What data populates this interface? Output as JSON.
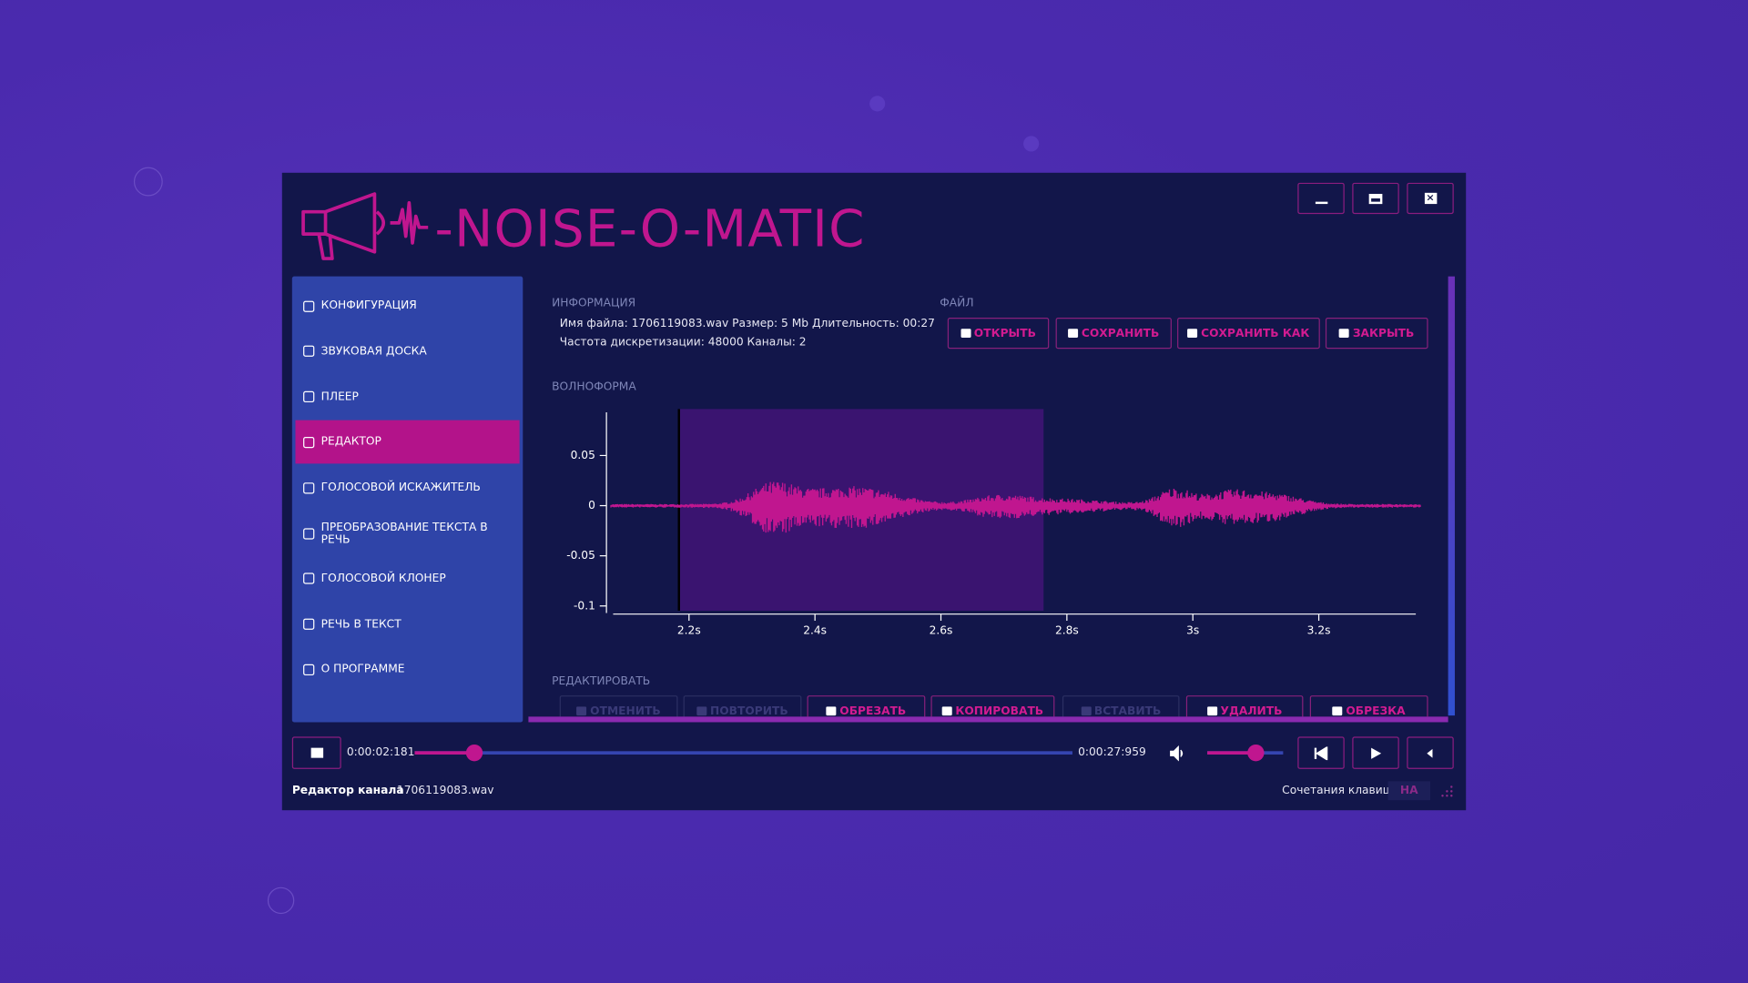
{
  "app": {
    "title": "NOISE-O-MATIC"
  },
  "sidebar": {
    "items": [
      "КОНФИГУРАЦИЯ",
      "ЗВУКОВАЯ ДОСКА",
      "ПЛЕЕР",
      "РЕДАКТОР",
      "ГОЛОСОВОЙ ИСКАЖИТЕЛЬ",
      "ПРЕОБРАЗОВАНИЕ ТЕКСТА В РЕЧЬ",
      "ГОЛОСОВОЙ КЛОНЕР",
      "РЕЧЬ В ТЕКСТ",
      "О ПРОГРАММЕ"
    ],
    "active": 3
  },
  "info": {
    "label": "ИНФОРМАЦИЯ",
    "lines": [
      "Имя файла: 1706119083.wav Размер: 5 Mb Длительность: 00:27",
      "Частота дискретизации: 48000 Каналы: 2"
    ]
  },
  "file": {
    "label": "ФАЙЛ",
    "buttons": [
      "ОТКРЫТЬ",
      "СОХРАНИТЬ",
      "СОХРАНИТЬ КАК",
      "ЗАКРЫТЬ"
    ]
  },
  "waveform": {
    "label": "ВОЛНОФОРМА",
    "xlim": [
      2.076,
      3.354
    ],
    "ylim": [
      -0.107,
      0.093
    ],
    "xticks": [
      {
        "value": 2.2,
        "label": "2.2s"
      },
      {
        "value": 2.4,
        "label": "2.4s"
      },
      {
        "value": 2.6,
        "label": "2.6s"
      },
      {
        "value": 2.8,
        "label": "2.8s"
      },
      {
        "value": 3,
        "label": "3s"
      },
      {
        "value": 3.2,
        "label": "3.2s"
      }
    ],
    "yticks": [
      0.05,
      0,
      -0.05,
      -0.1
    ],
    "selection": [
      2.184,
      2.763
    ],
    "color": "#c0168f"
  },
  "edit": {
    "label": "РЕДАКТИРОВАТЬ",
    "buttons": [
      {
        "text": "ОТМЕНИТЬ",
        "enabled": false
      },
      {
        "text": "ПОВТОРИТЬ",
        "enabled": false
      },
      {
        "text": "ОБРЕЗАТЬ",
        "enabled": true
      },
      {
        "text": "КОПИРОВАТЬ",
        "enabled": true
      },
      {
        "text": "ВСТАВИТЬ",
        "enabled": false
      },
      {
        "text": "УДАЛИТЬ",
        "enabled": true
      },
      {
        "text": "ОБРЕЗКА",
        "enabled": true
      }
    ]
  },
  "player": {
    "current": "0:00:02:181",
    "total": "0:00:27:959"
  },
  "status": {
    "label": "Редактор канала",
    "file": "1706119083.wav",
    "shortcuts_label": "Сочетания клавиш:",
    "shortcuts_value": "НА"
  }
}
